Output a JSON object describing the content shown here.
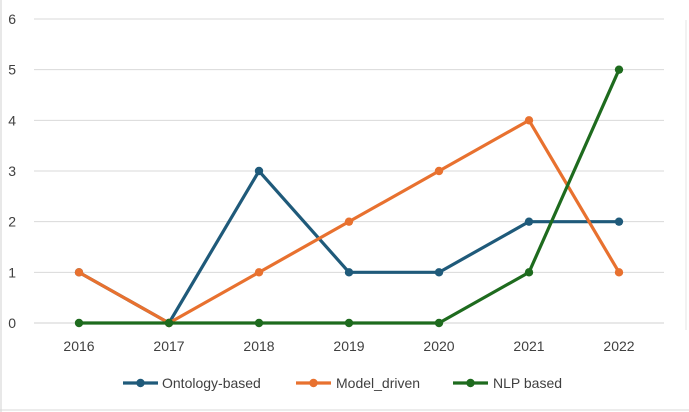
{
  "chart_data": {
    "type": "line",
    "categories": [
      "2016",
      "2017",
      "2018",
      "2019",
      "2020",
      "2021",
      "2022"
    ],
    "ylim": [
      0,
      6
    ],
    "yticks": [
      0,
      1,
      2,
      3,
      4,
      5,
      6
    ],
    "grid": true,
    "legend_position": "bottom",
    "series": [
      {
        "name": "Ontology-based",
        "color": "#1f5a7a",
        "values": [
          1,
          0,
          3,
          1,
          1,
          2,
          2
        ]
      },
      {
        "name": "Model_driven",
        "color": "#e8712f",
        "values": [
          1,
          0,
          1,
          2,
          3,
          4,
          1
        ]
      },
      {
        "name": "NLP based",
        "color": "#1e6b1e",
        "values": [
          0,
          0,
          0,
          0,
          0,
          1,
          5
        ]
      }
    ]
  }
}
